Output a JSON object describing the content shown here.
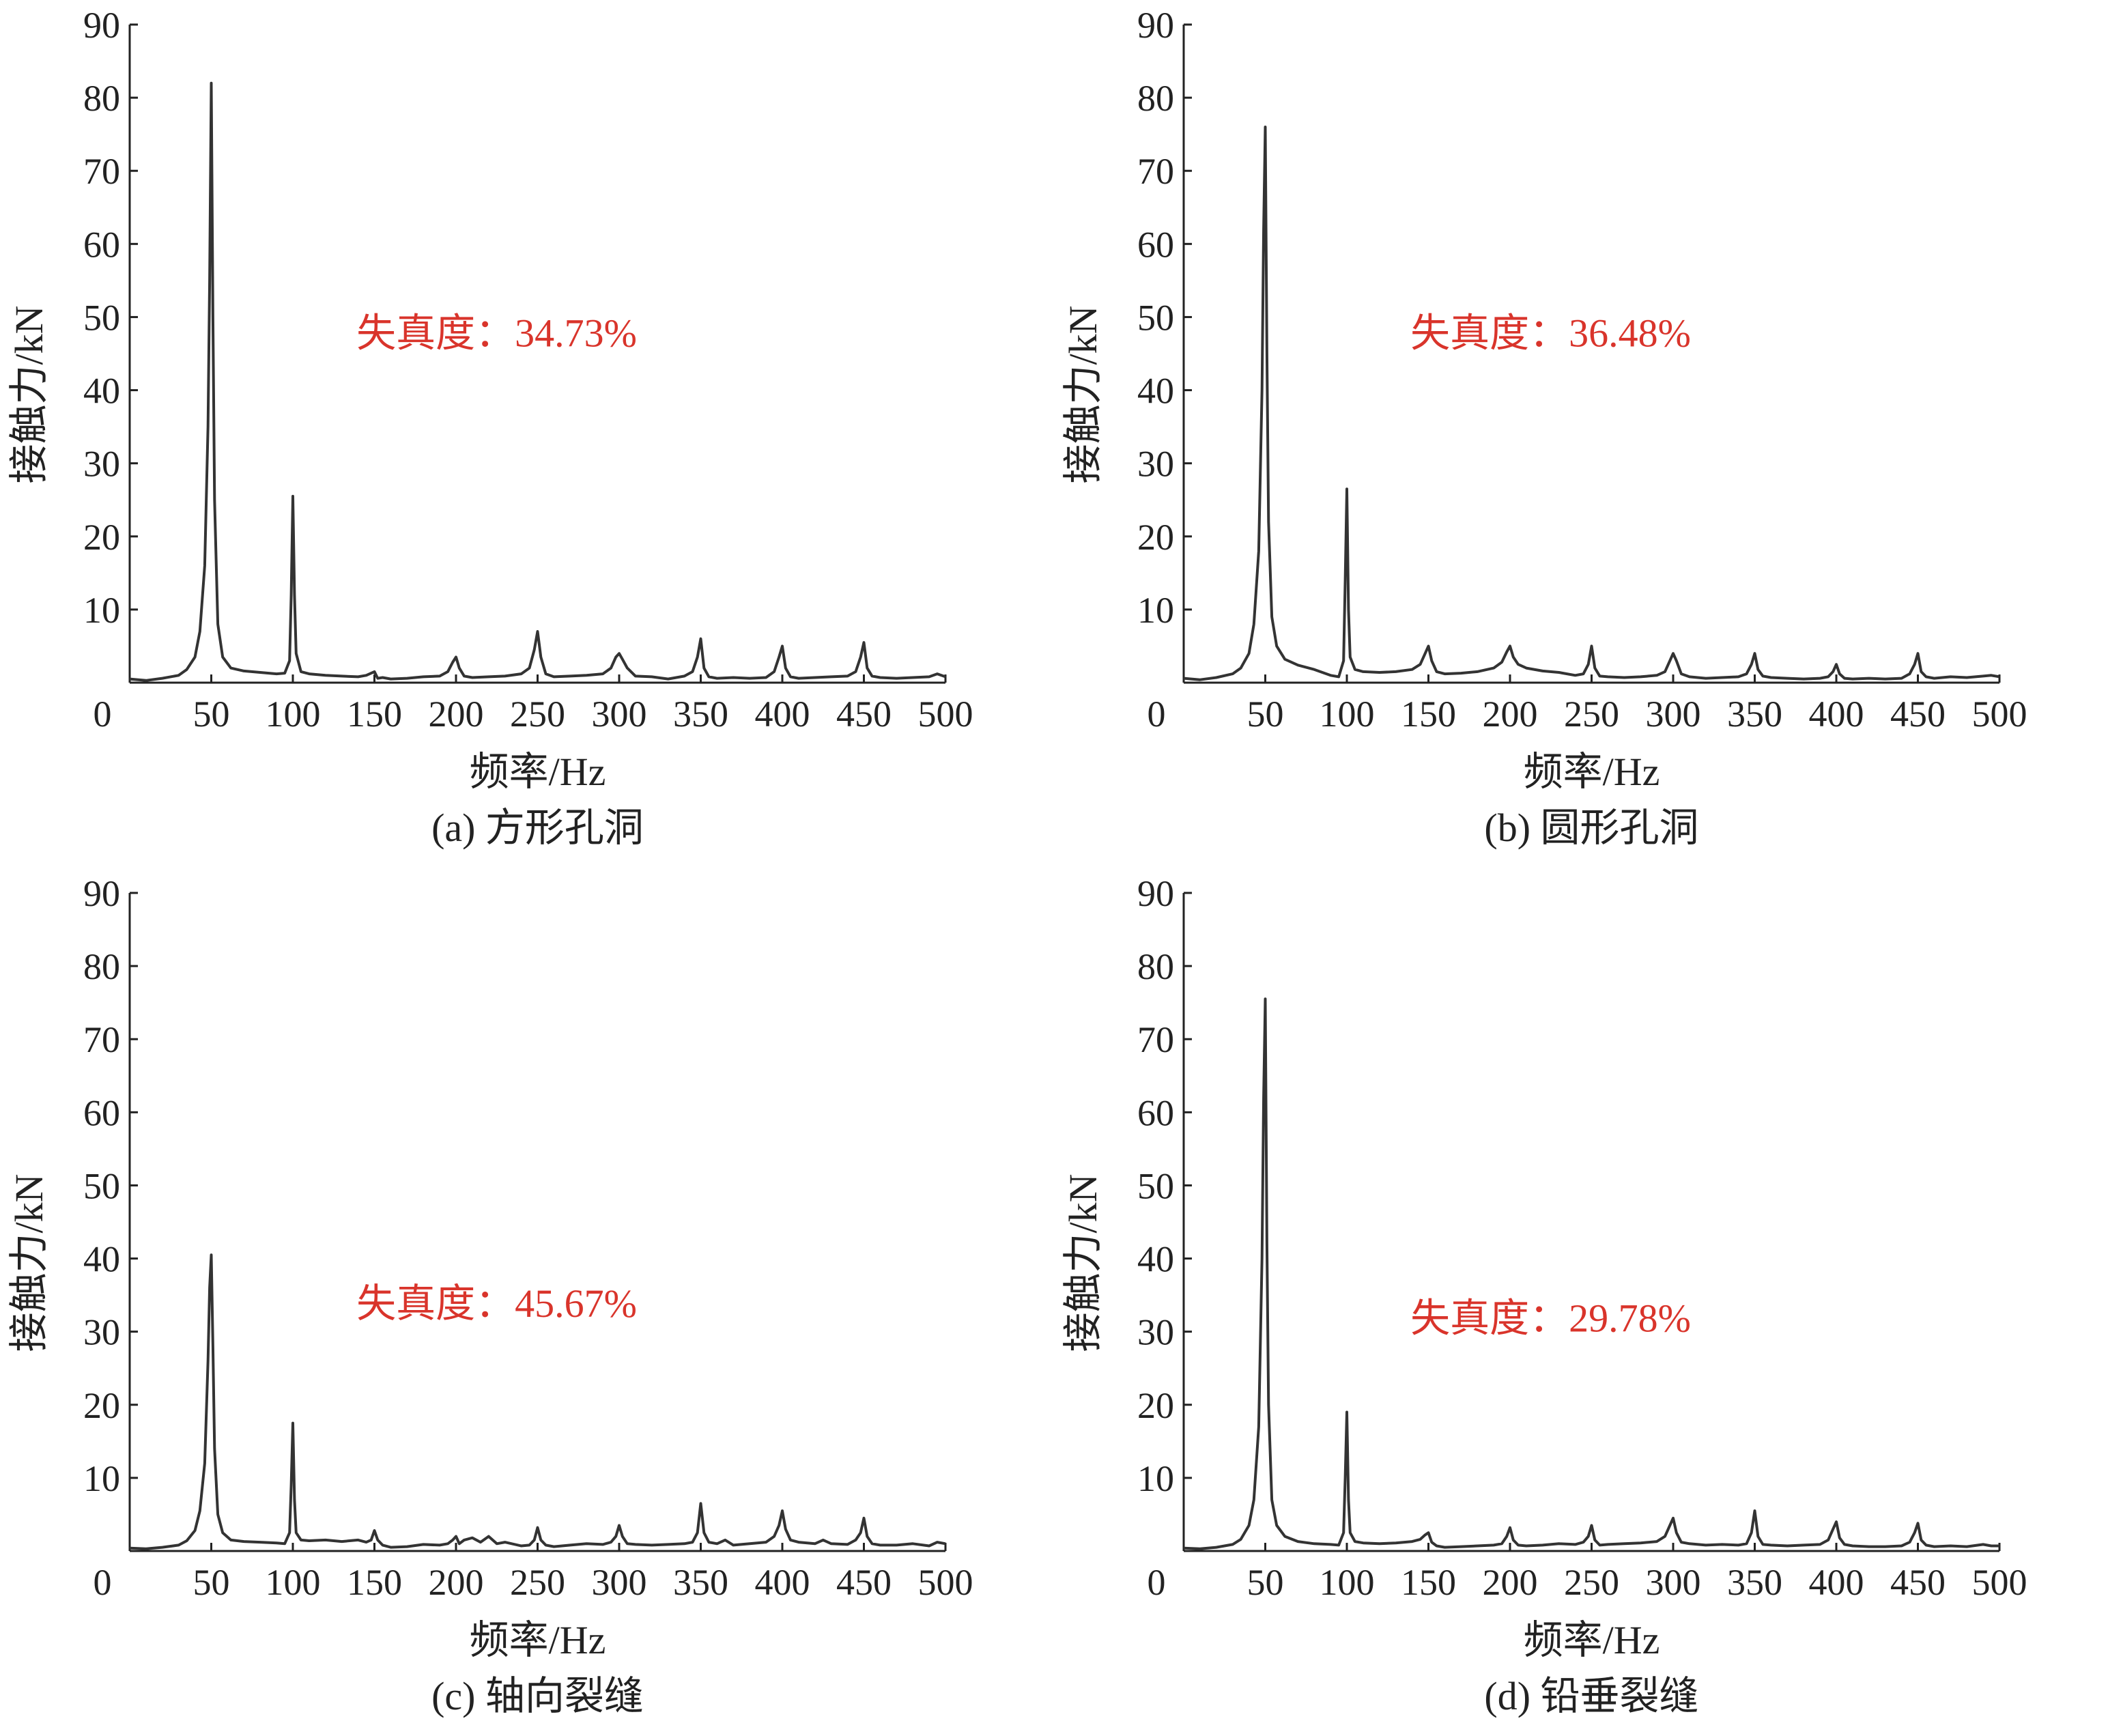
{
  "chart_data": [
    {
      "type": "line",
      "caption": "(a)  方形孔洞",
      "xlabel": "频率/Hz",
      "ylabel": "接触力/kN",
      "xlim": [
        0,
        500
      ],
      "ylim": [
        0,
        90
      ],
      "xticks": [
        "0",
        "50",
        "100",
        "150",
        "200",
        "250",
        "300",
        "350",
        "400",
        "450",
        "500"
      ],
      "yticks": [
        "10",
        "20",
        "30",
        "40",
        "50",
        "60",
        "70",
        "80",
        "90"
      ],
      "annotation": {
        "text": "失真度：34.73%",
        "color": "#d9342b"
      },
      "series": [
        {
          "x": [
            0,
            10,
            20,
            30,
            35,
            40,
            43,
            46,
            48,
            49,
            50,
            51,
            52,
            54,
            57,
            62,
            70,
            80,
            90,
            95,
            98,
            99,
            100,
            101,
            102,
            105,
            110,
            120,
            130,
            140,
            145,
            150,
            152,
            155,
            160,
            170,
            180,
            190,
            195,
            198,
            200,
            202,
            205,
            210,
            220,
            230,
            240,
            245,
            248,
            250,
            252,
            255,
            260,
            270,
            280,
            290,
            295,
            298,
            300,
            302,
            305,
            310,
            320,
            330,
            340,
            345,
            348,
            350,
            352,
            355,
            360,
            370,
            380,
            390,
            395,
            398,
            400,
            402,
            405,
            410,
            420,
            430,
            440,
            445,
            448,
            450,
            452,
            455,
            460,
            470,
            480,
            490,
            495,
            500
          ],
          "y": [
            0.5,
            0.3,
            0.6,
            1.0,
            1.8,
            3.5,
            7,
            16,
            35,
            55,
            82,
            50,
            25,
            8,
            3.5,
            2.0,
            1.6,
            1.4,
            1.2,
            1.3,
            3,
            12,
            25.5,
            12,
            4,
            1.5,
            1.2,
            1.0,
            0.9,
            0.8,
            1.0,
            1.5,
            0.6,
            0.7,
            0.5,
            0.6,
            0.8,
            0.9,
            1.5,
            2.8,
            3.5,
            2.0,
            0.9,
            0.7,
            0.8,
            0.9,
            1.2,
            2.0,
            4.5,
            7,
            3.5,
            1.2,
            0.8,
            0.9,
            1.0,
            1.2,
            2.0,
            3.5,
            4,
            3.2,
            2.0,
            0.9,
            0.8,
            0.5,
            0.9,
            1.5,
            3.5,
            6,
            2.0,
            0.8,
            0.6,
            0.7,
            0.6,
            0.7,
            1.5,
            3.5,
            5,
            2.0,
            0.8,
            0.6,
            0.7,
            0.8,
            0.9,
            1.5,
            3.5,
            5.5,
            2.0,
            0.9,
            0.7,
            0.6,
            0.7,
            0.8,
            1.2,
            0.8
          ]
        }
      ]
    },
    {
      "type": "line",
      "caption": "(b)  圆形孔洞",
      "xlabel": "频率/Hz",
      "ylabel": "接触力/kN",
      "xlim": [
        0,
        500
      ],
      "ylim": [
        0,
        90
      ],
      "xticks": [
        "0",
        "50",
        "100",
        "150",
        "200",
        "250",
        "300",
        "350",
        "400",
        "450",
        "500"
      ],
      "yticks": [
        "10",
        "20",
        "30",
        "40",
        "50",
        "60",
        "70",
        "80",
        "90"
      ],
      "annotation": {
        "text": "失真度：36.48%",
        "color": "#d9342b"
      },
      "series": [
        {
          "x": [
            0,
            10,
            20,
            30,
            35,
            40,
            43,
            46,
            48,
            49,
            50,
            51,
            52,
            54,
            57,
            62,
            70,
            80,
            90,
            95,
            98,
            99,
            100,
            101,
            102,
            105,
            110,
            120,
            130,
            140,
            145,
            148,
            150,
            152,
            155,
            160,
            170,
            180,
            190,
            195,
            198,
            200,
            202,
            205,
            210,
            220,
            230,
            240,
            245,
            248,
            250,
            252,
            255,
            260,
            270,
            280,
            290,
            295,
            298,
            300,
            302,
            305,
            310,
            320,
            330,
            340,
            345,
            348,
            350,
            352,
            355,
            360,
            370,
            380,
            390,
            395,
            398,
            400,
            402,
            405,
            410,
            420,
            430,
            440,
            445,
            448,
            450,
            452,
            455,
            460,
            470,
            480,
            490,
            495,
            500
          ],
          "y": [
            0.6,
            0.4,
            0.7,
            1.2,
            2.0,
            4.0,
            8,
            18,
            40,
            62,
            76,
            45,
            22,
            9,
            5,
            3.2,
            2.4,
            1.8,
            1.0,
            0.8,
            3,
            14,
            26.5,
            10,
            3.5,
            1.8,
            1.5,
            1.4,
            1.5,
            1.8,
            2.5,
            4,
            5,
            3.0,
            1.5,
            1.2,
            1.3,
            1.5,
            2.0,
            2.8,
            4.2,
            5,
            3.5,
            2.5,
            2.0,
            1.6,
            1.4,
            1.0,
            1.2,
            2.5,
            5,
            2.0,
            0.9,
            0.8,
            0.7,
            0.8,
            1.0,
            1.5,
            3.0,
            4,
            3.0,
            1.2,
            0.8,
            0.6,
            0.7,
            0.8,
            1.2,
            2.5,
            4,
            1.8,
            0.9,
            0.7,
            0.6,
            0.5,
            0.6,
            0.8,
            1.5,
            2.5,
            1.2,
            0.6,
            0.5,
            0.6,
            0.5,
            0.6,
            1.2,
            2.5,
            4,
            1.5,
            0.8,
            0.6,
            0.8,
            0.7,
            0.9,
            1.0,
            0.8
          ]
        }
      ]
    },
    {
      "type": "line",
      "caption": "(c)  轴向裂缝",
      "xlabel": "频率/Hz",
      "ylabel": "接触力/kN",
      "xlim": [
        0,
        500
      ],
      "ylim": [
        0,
        90
      ],
      "xticks": [
        "0",
        "50",
        "100",
        "150",
        "200",
        "250",
        "300",
        "350",
        "400",
        "450",
        "500"
      ],
      "yticks": [
        "10",
        "20",
        "30",
        "40",
        "50",
        "60",
        "70",
        "80",
        "90"
      ],
      "annotation": {
        "text": "失真度：45.67%",
        "color": "#d9342b"
      },
      "series": [
        {
          "x": [
            0,
            10,
            20,
            30,
            35,
            40,
            43,
            46,
            48,
            49,
            50,
            51,
            52,
            54,
            57,
            62,
            70,
            80,
            90,
            95,
            98,
            99,
            100,
            101,
            102,
            105,
            110,
            120,
            130,
            140,
            145,
            148,
            150,
            152,
            155,
            160,
            170,
            180,
            190,
            195,
            198,
            200,
            202,
            205,
            210,
            215,
            220,
            225,
            230,
            240,
            245,
            248,
            250,
            252,
            255,
            260,
            270,
            280,
            290,
            295,
            298,
            300,
            302,
            305,
            310,
            320,
            330,
            340,
            345,
            348,
            350,
            352,
            355,
            360,
            365,
            370,
            380,
            390,
            395,
            398,
            400,
            402,
            405,
            410,
            420,
            425,
            430,
            440,
            445,
            448,
            450,
            452,
            455,
            460,
            470,
            480,
            490,
            495,
            500
          ],
          "y": [
            0.4,
            0.3,
            0.5,
            0.8,
            1.4,
            2.8,
            5.5,
            12,
            26,
            36,
            40.5,
            28,
            14,
            5,
            2.5,
            1.5,
            1.3,
            1.2,
            1.1,
            1.0,
            2.5,
            9,
            17.5,
            7,
            2.5,
            1.5,
            1.4,
            1.5,
            1.3,
            1.5,
            1.2,
            1.5,
            2.8,
            1.5,
            0.8,
            0.5,
            0.6,
            0.9,
            0.8,
            1.0,
            1.5,
            2.0,
            1.0,
            1.5,
            1.8,
            1.2,
            2.0,
            1.0,
            1.2,
            0.7,
            0.8,
            1.5,
            3.2,
            1.5,
            0.8,
            0.6,
            0.8,
            1.0,
            0.9,
            1.2,
            2.0,
            3.5,
            2.0,
            1.0,
            0.9,
            0.8,
            0.9,
            1.0,
            1.2,
            2.5,
            6.5,
            2.5,
            1.2,
            1.0,
            1.5,
            0.8,
            1.0,
            1.2,
            2.0,
            3.5,
            5.5,
            3.0,
            1.5,
            1.2,
            1.0,
            1.5,
            1.0,
            0.9,
            1.5,
            2.5,
            4.5,
            2.0,
            1.0,
            0.8,
            0.8,
            1.0,
            0.7,
            1.2,
            1.0
          ]
        }
      ]
    },
    {
      "type": "line",
      "caption": "(d)  铅垂裂缝",
      "xlabel": "频率/Hz",
      "ylabel": "接触力/kN",
      "xlim": [
        0,
        500
      ],
      "ylim": [
        0,
        90
      ],
      "xticks": [
        "0",
        "50",
        "100",
        "150",
        "200",
        "250",
        "300",
        "350",
        "400",
        "450",
        "500"
      ],
      "yticks": [
        "10",
        "20",
        "30",
        "40",
        "50",
        "60",
        "70",
        "80",
        "90"
      ],
      "annotation": {
        "text": "失真度：29.78%",
        "color": "#d9342b"
      },
      "series": [
        {
          "x": [
            0,
            10,
            20,
            30,
            35,
            40,
            43,
            46,
            48,
            49,
            50,
            51,
            52,
            54,
            57,
            62,
            70,
            80,
            90,
            95,
            98,
            99,
            100,
            101,
            102,
            105,
            110,
            120,
            130,
            140,
            145,
            148,
            150,
            152,
            155,
            160,
            170,
            180,
            190,
            195,
            198,
            200,
            202,
            205,
            210,
            220,
            230,
            240,
            245,
            248,
            250,
            252,
            255,
            260,
            270,
            280,
            290,
            295,
            298,
            300,
            302,
            305,
            310,
            320,
            330,
            340,
            345,
            348,
            350,
            352,
            355,
            360,
            370,
            380,
            390,
            395,
            398,
            400,
            402,
            405,
            410,
            420,
            430,
            440,
            445,
            448,
            450,
            452,
            455,
            460,
            470,
            480,
            490,
            495,
            500
          ],
          "y": [
            0.4,
            0.3,
            0.5,
            0.9,
            1.6,
            3.5,
            7,
            17,
            40,
            62,
            75.5,
            42,
            20,
            7,
            3.5,
            2.0,
            1.3,
            1.0,
            0.9,
            0.8,
            2.5,
            10,
            19,
            7,
            2.5,
            1.3,
            1.1,
            1.0,
            1.1,
            1.3,
            1.6,
            2.2,
            2.5,
            1.2,
            0.7,
            0.5,
            0.6,
            0.7,
            0.8,
            1.0,
            2.0,
            3.2,
            1.5,
            0.8,
            0.7,
            0.8,
            1.0,
            0.9,
            1.2,
            2.0,
            3.5,
            1.5,
            0.8,
            0.9,
            1.0,
            1.1,
            1.3,
            2.0,
            3.5,
            4.5,
            2.5,
            1.2,
            1.0,
            0.8,
            0.9,
            0.8,
            1.0,
            2.5,
            5.5,
            2.0,
            0.9,
            0.8,
            0.7,
            0.8,
            0.9,
            1.5,
            3.0,
            4,
            1.8,
            0.9,
            0.7,
            0.6,
            0.6,
            0.7,
            1.2,
            2.5,
            3.8,
            1.5,
            0.8,
            0.6,
            0.7,
            0.6,
            0.9,
            0.7,
            0.7
          ]
        }
      ]
    }
  ]
}
